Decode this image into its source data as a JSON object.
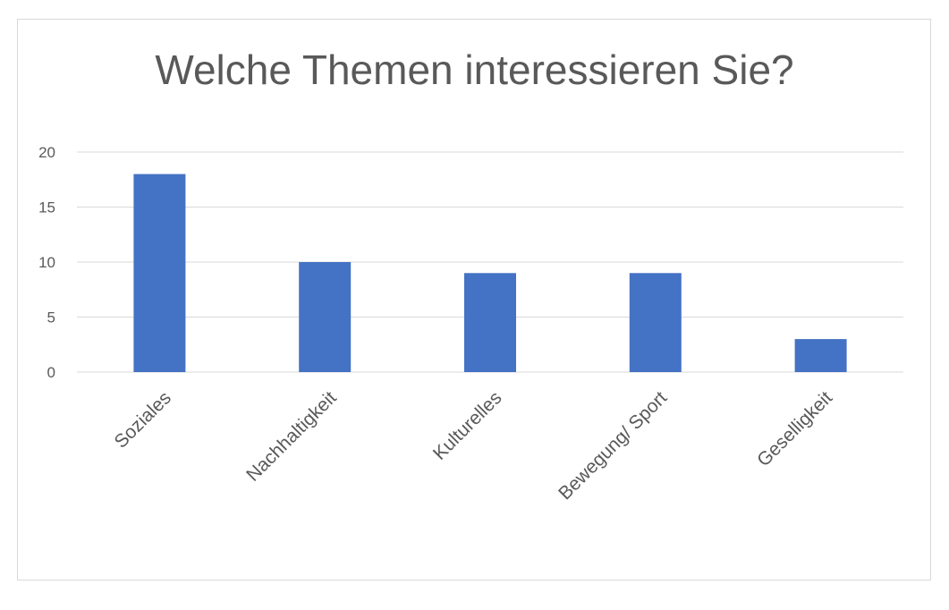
{
  "chart_data": {
    "type": "bar",
    "title": "Welche Themen interessieren Sie?",
    "categories": [
      "Soziales",
      "Nachhaltigkeit",
      "Kulturelles",
      "Bewegung/ Sport",
      "Geselligkeit"
    ],
    "values": [
      18,
      10,
      9,
      9,
      3
    ],
    "xlabel": "",
    "ylabel": "",
    "ylim": [
      0,
      20
    ],
    "yticks": [
      0,
      5,
      10,
      15,
      20
    ],
    "grid": true,
    "legend": "none",
    "bar_color": "#4472c4"
  }
}
